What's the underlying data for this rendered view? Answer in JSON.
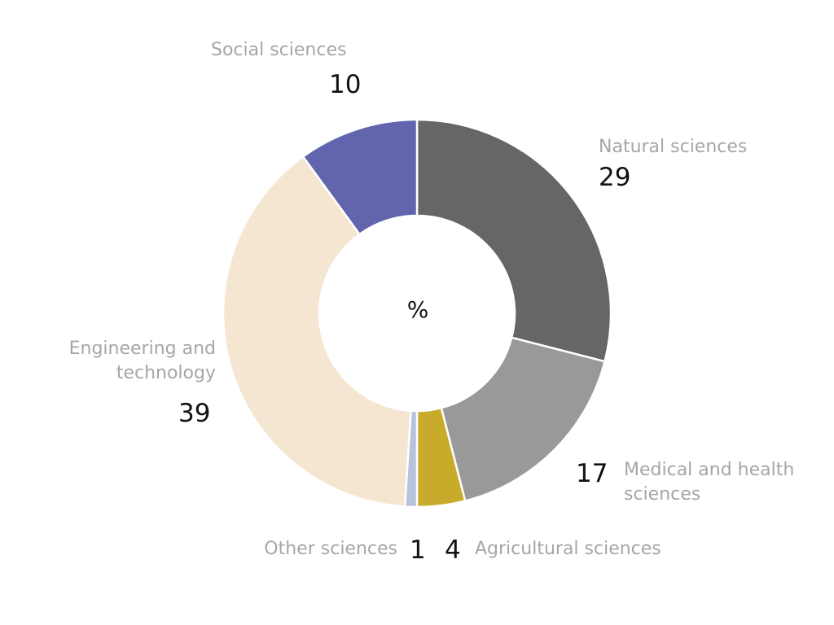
{
  "chart_data": {
    "type": "pie",
    "center_label": "%",
    "categories": [
      "Natural sciences",
      "Medical and health sciences",
      "Agricultural sciences",
      "Other sciences",
      "Engineering and technology",
      "Social sciences"
    ],
    "values": [
      29,
      17,
      4,
      1,
      39,
      10
    ],
    "colors": [
      "#666666",
      "#999999",
      "#c9ab2c",
      "#b7c2dc",
      "#f5e6d2",
      "#6264ad"
    ]
  }
}
